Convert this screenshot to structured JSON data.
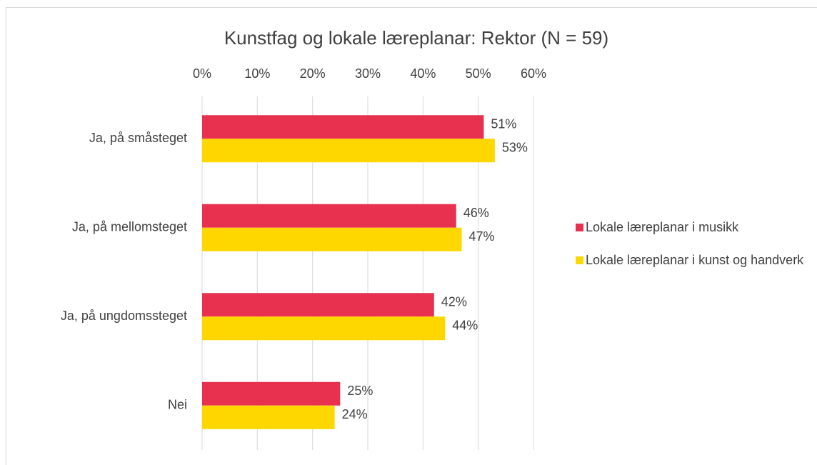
{
  "chart_data": {
    "type": "hbar",
    "title": "Kunstfag og lokale læreplanar: Rektor (N = 59)",
    "categories": [
      "Ja, på småsteget",
      "Ja, på mellomsteget",
      "Ja, på ungdomssteget",
      "Nei"
    ],
    "series": [
      {
        "name": "Lokale læreplanar i musikk",
        "color": "#e8314f",
        "values": [
          51,
          46,
          42,
          25
        ],
        "value_labels": [
          "51%",
          "46%",
          "42%",
          "25%"
        ]
      },
      {
        "name": "Lokale læreplanar i kunst og handverk",
        "color": "#ffd700",
        "values": [
          53,
          47,
          44,
          24
        ],
        "value_labels": [
          "53%",
          "47%",
          "44%",
          "24%"
        ]
      }
    ],
    "xlim": [
      0,
      60
    ],
    "xticks": [
      {
        "value": 0,
        "label": "0%"
      },
      {
        "value": 10,
        "label": "10%"
      },
      {
        "value": 20,
        "label": "20%"
      },
      {
        "value": 30,
        "label": "30%"
      },
      {
        "value": 40,
        "label": "40%"
      },
      {
        "value": 50,
        "label": "50%"
      },
      {
        "value": 60,
        "label": "60%"
      }
    ],
    "grid": true,
    "legend": "right"
  }
}
